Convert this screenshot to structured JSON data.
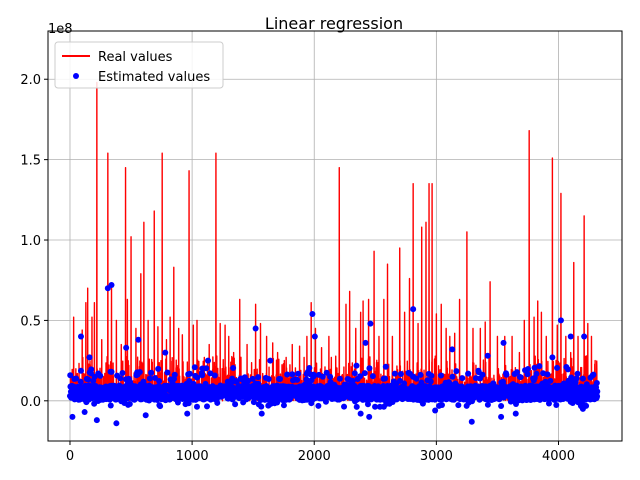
{
  "chart_data": {
    "type": "line",
    "title": "Linear regression",
    "xlabel": "",
    "ylabel": "",
    "y_offset_text": "1e8",
    "xlim": [
      -180,
      4520
    ],
    "ylim": [
      -0.25,
      2.3
    ],
    "x_ticks": [
      0,
      1000,
      2000,
      3000,
      4000
    ],
    "x_tick_labels": [
      "0",
      "1000",
      "2000",
      "3000",
      "4000"
    ],
    "y_ticks": [
      0.0,
      0.5,
      1.0,
      1.5,
      2.0
    ],
    "y_tick_labels": [
      "0.0",
      "0.5",
      "1.0",
      "1.5",
      "2.0"
    ],
    "grid": true,
    "legend_position": "top-left",
    "series": [
      {
        "name": "Real values",
        "style": "line",
        "color": "#ff0000",
        "n_points": 4320,
        "baseline": 0.06,
        "peaks": [
          {
            "x": 30,
            "y": 0.52
          },
          {
            "x": 100,
            "y": 0.44
          },
          {
            "x": 130,
            "y": 0.61
          },
          {
            "x": 145,
            "y": 0.7
          },
          {
            "x": 180,
            "y": 0.52
          },
          {
            "x": 200,
            "y": 0.61
          },
          {
            "x": 220,
            "y": 1.98
          },
          {
            "x": 260,
            "y": 0.38
          },
          {
            "x": 310,
            "y": 1.54
          },
          {
            "x": 340,
            "y": 0.7
          },
          {
            "x": 380,
            "y": 0.5
          },
          {
            "x": 420,
            "y": 0.35
          },
          {
            "x": 455,
            "y": 1.45
          },
          {
            "x": 470,
            "y": 0.63
          },
          {
            "x": 500,
            "y": 1.02
          },
          {
            "x": 540,
            "y": 0.45
          },
          {
            "x": 580,
            "y": 0.79
          },
          {
            "x": 605,
            "y": 1.11
          },
          {
            "x": 640,
            "y": 0.5
          },
          {
            "x": 690,
            "y": 1.18
          },
          {
            "x": 720,
            "y": 0.46
          },
          {
            "x": 755,
            "y": 1.54
          },
          {
            "x": 790,
            "y": 0.38
          },
          {
            "x": 820,
            "y": 0.52
          },
          {
            "x": 850,
            "y": 0.83
          },
          {
            "x": 890,
            "y": 0.45
          },
          {
            "x": 920,
            "y": 0.41
          },
          {
            "x": 975,
            "y": 1.43
          },
          {
            "x": 1010,
            "y": 0.47
          },
          {
            "x": 1040,
            "y": 0.5
          },
          {
            "x": 1100,
            "y": 0.27
          },
          {
            "x": 1140,
            "y": 0.35
          },
          {
            "x": 1195,
            "y": 1.54
          },
          {
            "x": 1230,
            "y": 0.48
          },
          {
            "x": 1270,
            "y": 0.47
          },
          {
            "x": 1300,
            "y": 0.4
          },
          {
            "x": 1340,
            "y": 0.3
          },
          {
            "x": 1390,
            "y": 0.63
          },
          {
            "x": 1450,
            "y": 0.35
          },
          {
            "x": 1520,
            "y": 0.6
          },
          {
            "x": 1560,
            "y": 0.48
          },
          {
            "x": 1610,
            "y": 0.4
          },
          {
            "x": 1660,
            "y": 0.36
          },
          {
            "x": 1700,
            "y": 0.3
          },
          {
            "x": 1770,
            "y": 0.27
          },
          {
            "x": 1820,
            "y": 0.35
          },
          {
            "x": 1880,
            "y": 0.34
          },
          {
            "x": 1940,
            "y": 0.4
          },
          {
            "x": 1975,
            "y": 0.61
          },
          {
            "x": 2010,
            "y": 0.45
          },
          {
            "x": 2060,
            "y": 0.33
          },
          {
            "x": 2120,
            "y": 0.4
          },
          {
            "x": 2205,
            "y": 1.45
          },
          {
            "x": 2260,
            "y": 0.6
          },
          {
            "x": 2290,
            "y": 0.68
          },
          {
            "x": 2340,
            "y": 0.45
          },
          {
            "x": 2380,
            "y": 0.55
          },
          {
            "x": 2400,
            "y": 0.62
          },
          {
            "x": 2445,
            "y": 0.63
          },
          {
            "x": 2490,
            "y": 0.93
          },
          {
            "x": 2530,
            "y": 0.4
          },
          {
            "x": 2570,
            "y": 0.63
          },
          {
            "x": 2600,
            "y": 0.85
          },
          {
            "x": 2640,
            "y": 0.4
          },
          {
            "x": 2700,
            "y": 0.95
          },
          {
            "x": 2740,
            "y": 0.55
          },
          {
            "x": 2780,
            "y": 0.76
          },
          {
            "x": 2810,
            "y": 1.35
          },
          {
            "x": 2850,
            "y": 0.48
          },
          {
            "x": 2880,
            "y": 1.08
          },
          {
            "x": 2915,
            "y": 1.11
          },
          {
            "x": 2940,
            "y": 1.35
          },
          {
            "x": 2965,
            "y": 1.35
          },
          {
            "x": 3000,
            "y": 0.54
          },
          {
            "x": 3040,
            "y": 0.6
          },
          {
            "x": 3080,
            "y": 0.45
          },
          {
            "x": 3110,
            "y": 0.4
          },
          {
            "x": 3150,
            "y": 0.42
          },
          {
            "x": 3190,
            "y": 0.63
          },
          {
            "x": 3250,
            "y": 1.05
          },
          {
            "x": 3300,
            "y": 0.45
          },
          {
            "x": 3360,
            "y": 0.45
          },
          {
            "x": 3400,
            "y": 0.49
          },
          {
            "x": 3440,
            "y": 0.74
          },
          {
            "x": 3500,
            "y": 0.4
          },
          {
            "x": 3560,
            "y": 0.4
          },
          {
            "x": 3620,
            "y": 0.4
          },
          {
            "x": 3680,
            "y": 0.3
          },
          {
            "x": 3720,
            "y": 0.5
          },
          {
            "x": 3760,
            "y": 1.68
          },
          {
            "x": 3800,
            "y": 0.52
          },
          {
            "x": 3830,
            "y": 0.62
          },
          {
            "x": 3860,
            "y": 0.55
          },
          {
            "x": 3900,
            "y": 0.4
          },
          {
            "x": 3950,
            "y": 1.51
          },
          {
            "x": 3990,
            "y": 0.47
          },
          {
            "x": 4020,
            "y": 1.29
          },
          {
            "x": 4060,
            "y": 0.4
          },
          {
            "x": 4100,
            "y": 0.3
          },
          {
            "x": 4125,
            "y": 0.86
          },
          {
            "x": 4160,
            "y": 0.4
          },
          {
            "x": 4210,
            "y": 1.15
          },
          {
            "x": 4240,
            "y": 0.48
          },
          {
            "x": 4270,
            "y": 0.4
          },
          {
            "x": 4300,
            "y": 0.25
          }
        ]
      },
      {
        "name": "Estimated values",
        "style": "points",
        "color": "#0000ff",
        "n_points": 4320,
        "baseline": 0.05,
        "outliers": [
          {
            "x": 20,
            "y": -0.1
          },
          {
            "x": 90,
            "y": 0.4
          },
          {
            "x": 120,
            "y": -0.07
          },
          {
            "x": 160,
            "y": 0.27
          },
          {
            "x": 220,
            "y": -0.12
          },
          {
            "x": 310,
            "y": 0.7
          },
          {
            "x": 340,
            "y": 0.72
          },
          {
            "x": 380,
            "y": -0.14
          },
          {
            "x": 460,
            "y": 0.33
          },
          {
            "x": 560,
            "y": 0.38
          },
          {
            "x": 620,
            "y": -0.09
          },
          {
            "x": 780,
            "y": 0.3
          },
          {
            "x": 960,
            "y": -0.08
          },
          {
            "x": 1130,
            "y": 0.25
          },
          {
            "x": 1520,
            "y": 0.45
          },
          {
            "x": 1570,
            "y": -0.08
          },
          {
            "x": 1640,
            "y": 0.25
          },
          {
            "x": 1985,
            "y": 0.54
          },
          {
            "x": 2005,
            "y": 0.4
          },
          {
            "x": 2380,
            "y": -0.08
          },
          {
            "x": 2420,
            "y": 0.36
          },
          {
            "x": 2450,
            "y": -0.1
          },
          {
            "x": 2460,
            "y": 0.48
          },
          {
            "x": 2810,
            "y": 0.57
          },
          {
            "x": 2990,
            "y": -0.06
          },
          {
            "x": 3130,
            "y": 0.32
          },
          {
            "x": 3290,
            "y": -0.13
          },
          {
            "x": 3420,
            "y": 0.28
          },
          {
            "x": 3530,
            "y": -0.1
          },
          {
            "x": 3550,
            "y": 0.36
          },
          {
            "x": 3650,
            "y": -0.08
          },
          {
            "x": 3950,
            "y": 0.27
          },
          {
            "x": 4020,
            "y": 0.5
          },
          {
            "x": 4100,
            "y": 0.4
          },
          {
            "x": 4200,
            "y": -0.05
          },
          {
            "x": 4210,
            "y": 0.4
          }
        ]
      }
    ]
  }
}
